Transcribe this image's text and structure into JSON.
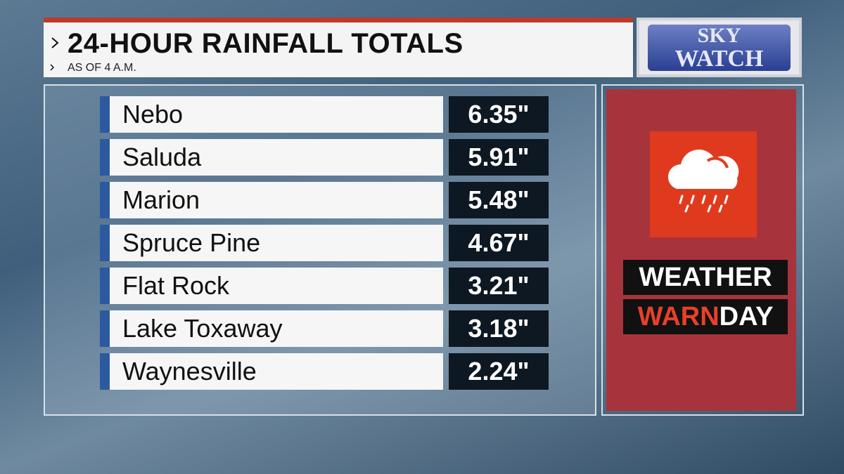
{
  "header": {
    "title": "24-HOUR RAINFALL TOTALS",
    "subtitle": "AS OF 4 A.M."
  },
  "logo": {
    "line1": "SKY",
    "line2": "WATCH"
  },
  "table": {
    "rows": [
      [
        "Nebo",
        "6.35\""
      ],
      [
        "Saluda",
        "5.91\""
      ],
      [
        "Marion",
        "5.48\""
      ],
      [
        "Spruce Pine",
        "4.67\""
      ],
      [
        "Flat Rock",
        "3.21\""
      ],
      [
        "Lake Toxaway",
        "3.18\""
      ],
      [
        "Waynesville",
        "2.24\""
      ]
    ]
  },
  "badge": {
    "line1": "WEATHER",
    "line2a": "WARN",
    "line2b": "DAY"
  }
}
